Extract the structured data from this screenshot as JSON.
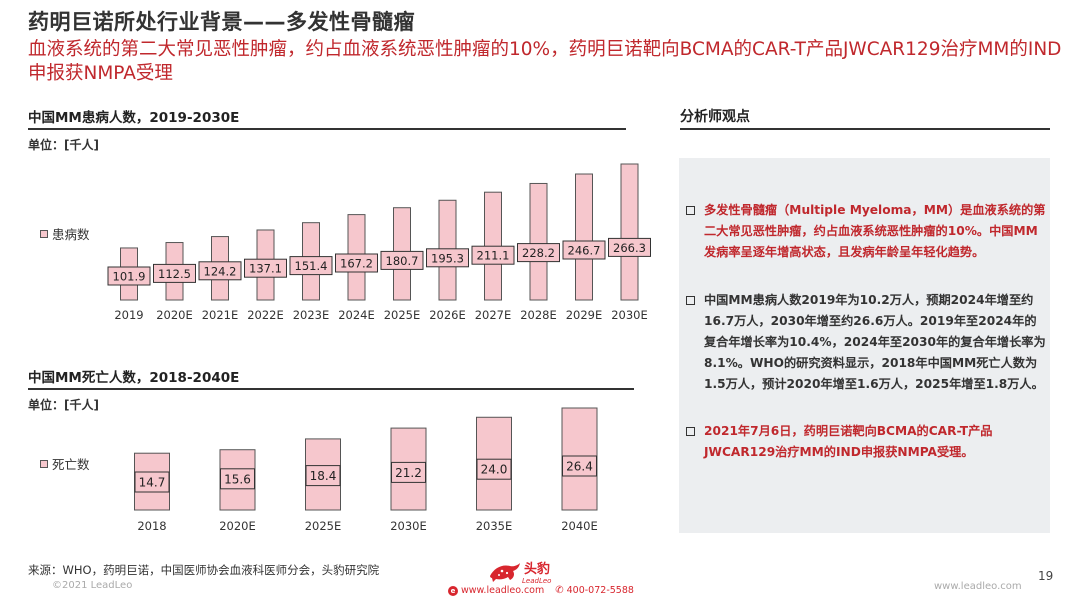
{
  "header": {
    "title": "药明巨诺所处行业背景——多发性骨髓瘤",
    "subtitle": "血液系统的第二大常见恶性肿瘤，约占血液系统恶性肿瘤的10%，药明巨诺靶向BCMA的CAR-T产品JWCAR129治疗MM的IND申报获NMPA受理"
  },
  "colors": {
    "bar_fill": "#f6c7cd",
    "bar_stroke": "#555555",
    "accent_red": "#c0282d",
    "panel_bg": "#eceef0"
  },
  "chart1": {
    "title": "中国MM患病人数，2019-2030E",
    "unit": "单位：[千人]",
    "legend": "患病数"
  },
  "chart2": {
    "title": "中国MM死亡人数，2018-2040E",
    "unit": "单位：[千人]",
    "legend": "死亡数"
  },
  "chart_data": [
    {
      "type": "bar",
      "title": "中国MM患病人数，2019-2030E",
      "ylabel": "单位：[千人]",
      "categories": [
        "2019",
        "2020E",
        "2021E",
        "2022E",
        "2023E",
        "2024E",
        "2025E",
        "2026E",
        "2027E",
        "2028E",
        "2029E",
        "2030E"
      ],
      "series": [
        {
          "name": "患病数",
          "values": [
            101.9,
            112.5,
            124.2,
            137.1,
            151.4,
            167.2,
            180.7,
            195.3,
            211.1,
            228.2,
            246.7,
            266.3
          ]
        }
      ],
      "ylim": [
        0,
        266.3
      ],
      "grid": false,
      "legend": "left"
    },
    {
      "type": "bar",
      "title": "中国MM死亡人数，2018-2040E",
      "ylabel": "单位：[千人]",
      "categories": [
        "2018",
        "2020E",
        "2025E",
        "2030E",
        "2035E",
        "2040E"
      ],
      "series": [
        {
          "name": "死亡数",
          "values": [
            14.7,
            15.6,
            18.4,
            21.2,
            24.0,
            26.4
          ]
        }
      ],
      "labels": [
        "14.7",
        "15.6",
        "18.4",
        "21.2",
        "24.0",
        "26.4"
      ],
      "ylim": [
        0,
        26.4
      ],
      "grid": false,
      "legend": "left"
    }
  ],
  "panel": {
    "title": "分析师观点",
    "bullets": [
      "多发性骨髓瘤（Multiple Myeloma，MM）是血液系统的第二大常见恶性肿瘤，约占血液系统恶性肿瘤的10%。中国MM发病率呈逐年增高状态，且发病年龄呈年轻化趋势。",
      "中国MM患病人数2019年为10.2万人，预期2024年增至约16.7万人，2030年增至约26.6万人。2019年至2024年的复合年增长率为10.4%，2024年至2030年的复合年增长率为8.1%。WHO的研究资料显示，2018年中国MM死亡人数为1.5万人，预计2020年增至1.6万人，2025年增至1.8万人。",
      "2021年7月6日，药明巨诺靶向BCMA的CAR-T产品JWCAR129治疗MM的IND申报获NMPA受理。"
    ]
  },
  "footer": {
    "source": "来源：WHO，药明巨诺，中国医师协会血液科医师分会，头豹研究院",
    "copyright": "©2021 LeadLeo",
    "logo_text": "头豹",
    "logo_sub": "LeadLeo",
    "website": "www.leadleo.com",
    "phone": "400-072-5588",
    "site_right": "www.leadleo.com",
    "page": "19"
  }
}
